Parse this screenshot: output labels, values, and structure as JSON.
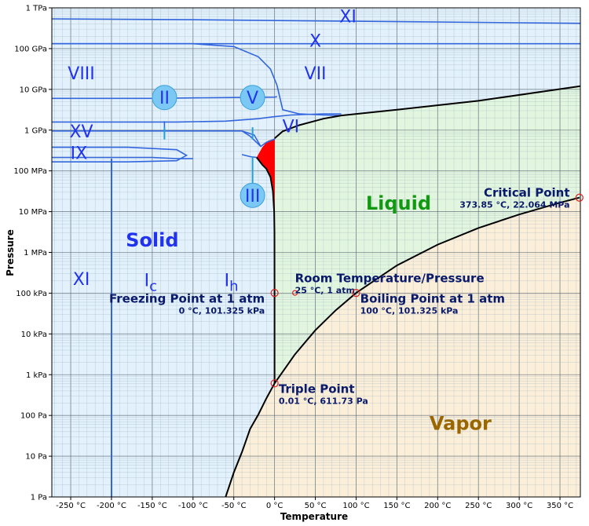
{
  "chart_data": {
    "type": "area",
    "xlabel": "Temperature",
    "ylabel": "Pressure",
    "xlim": [
      -273.15,
      375
    ],
    "ylim_log10_pa": [
      0,
      12
    ],
    "scale_y": "log",
    "x_tick_values": [
      -250,
      -200,
      -150,
      -100,
      -50,
      0,
      50,
      100,
      150,
      200,
      250,
      300,
      350
    ],
    "x_tick_labels": [
      "-250 °C",
      "-200 °C",
      "-150 °C",
      "-100 °C",
      "-50 °C",
      "0 °C",
      "50 °C",
      "100 °C",
      "150 °C",
      "200 °C",
      "250 °C",
      "300 °C",
      "350 °C"
    ],
    "y_tick_values_log10_pa": [
      0,
      1,
      2,
      3,
      4,
      5,
      6,
      7,
      8,
      9,
      10,
      11,
      12
    ],
    "y_tick_labels": [
      "1 Pa",
      "10 Pa",
      "100 Pa",
      "1 kPa",
      "10 kPa",
      "100 kPa",
      "1 MPa",
      "10 MPa",
      "100 MPa",
      "1 GPa",
      "10 GPa",
      "100 GPa",
      "1 TPa"
    ],
    "grid": true,
    "colors": {
      "solid": "#e2f1fb",
      "liquid": "#e2f6df",
      "vapor": "#fcefd9",
      "boundary": "#000000",
      "ice_boundary": "#3366dd",
      "ice_iii_region": "#ff0000",
      "marker": "#dd2222",
      "phase_label": "#2233ee",
      "liquid_label": "#119911",
      "vapor_label": "#996600",
      "point_label": "#0a1a6a"
    },
    "region_labels": [
      {
        "key": "solid",
        "text": "Solid",
        "color": "#2233ee",
        "x": -150,
        "y": 6.3
      },
      {
        "key": "liquid",
        "text": "Liquid",
        "color": "#119911",
        "x": 152,
        "y": 7.2
      },
      {
        "key": "vapor",
        "text": "Vapor",
        "color": "#996600",
        "x": 228,
        "y": 1.8
      }
    ],
    "phase_labels": [
      {
        "text": "XI",
        "x": 90,
        "y": 11.8
      },
      {
        "text": "X",
        "x": 50,
        "y": 11.2
      },
      {
        "text": "VIII",
        "x": -237,
        "y": 10.4
      },
      {
        "text": "VII",
        "x": 50,
        "y": 10.4
      },
      {
        "text": "VI",
        "x": 20,
        "y": 9.1
      },
      {
        "text": "XV",
        "x": -237,
        "y": 8.98
      },
      {
        "text": "IX",
        "x": -240,
        "y": 8.45
      },
      {
        "text": "XI",
        "x": -237,
        "y": 5.35
      },
      {
        "text": "I",
        "sub": "c",
        "x": -152,
        "y": 5.33
      },
      {
        "text": "I",
        "sub": "h",
        "x": -53,
        "y": 5.33
      }
    ],
    "ice_bubbles": [
      {
        "text": "II",
        "x": -135,
        "y": 9.8
      },
      {
        "text": "V",
        "x": -27,
        "y": 9.8
      },
      {
        "text": "III",
        "x": -27,
        "y": 7.4
      }
    ],
    "boundaries": {
      "sublimation": {
        "x": [
          -60,
          -50,
          -40,
          -30,
          -20,
          -10,
          0.01
        ],
        "y": [
          0,
          0.6,
          1.1,
          1.67,
          2.02,
          2.42,
          2.787
        ]
      },
      "vaporization": {
        "x": [
          0.01,
          25,
          50,
          75,
          100,
          150,
          200,
          250,
          300,
          350,
          373.85
        ],
        "y": [
          2.787,
          3.5,
          4.09,
          4.58,
          5.006,
          5.68,
          6.19,
          6.6,
          6.93,
          7.22,
          7.344
        ]
      },
      "melting": {
        "x": [
          0.01,
          0.0,
          -0.1,
          -0.5,
          -2,
          -5,
          -10,
          -15,
          -21.985
        ],
        "y": [
          2.787,
          5.0,
          6.5,
          7.0,
          7.5,
          7.85,
          8.05,
          8.15,
          8.33
        ]
      },
      "ice_vi_liquid": {
        "x": [
          0.16,
          10,
          30,
          60,
          81.85
        ],
        "y": [
          8.8,
          8.97,
          9.12,
          9.28,
          9.36
        ]
      },
      "ice_vii_liquid": {
        "x": [
          81.85,
          150,
          250,
          375
        ],
        "y": [
          9.36,
          9.5,
          9.72,
          10.08
        ]
      },
      "ice_iii_region": {
        "x": [
          -21.985,
          -15,
          -8,
          -2,
          0.16,
          0.16,
          -2,
          -5,
          -10,
          -17,
          -21.985
        ],
        "y": [
          8.33,
          8.58,
          8.74,
          8.78,
          8.8,
          7.0,
          7.6,
          7.85,
          8.05,
          8.2,
          8.33
        ]
      },
      "ice_x_xi": {
        "x": [
          -273.15,
          -100,
          100,
          375
        ],
        "y": [
          11.73,
          11.71,
          11.67,
          11.62
        ]
      },
      "ice_vii_x": {
        "x": [
          -273.15,
          375
        ],
        "y": [
          11.12,
          11.12
        ]
      },
      "ice_viii_vii": {
        "x": [
          -273.15,
          -100,
          -50,
          -20,
          -5,
          3
        ],
        "y": [
          11.12,
          11.12,
          11.05,
          10.8,
          10.5,
          10.1
        ]
      },
      "ice_vii_vi_lower": {
        "x": [
          3,
          10,
          30,
          60,
          81.85
        ],
        "y": [
          10.1,
          9.5,
          9.4,
          9.37,
          9.36
        ]
      },
      "ice_viii_vi": {
        "x": [
          -273.15,
          -150,
          -100,
          -50,
          0,
          3
        ],
        "y": [
          9.78,
          9.78,
          9.79,
          9.8,
          9.81,
          9.82
        ]
      },
      "ice_xv_top": {
        "x": [
          -273.15,
          -200,
          -120,
          -60,
          -20,
          0,
          20,
          60,
          81.85
        ],
        "y": [
          9.2,
          9.2,
          9.2,
          9.22,
          9.28,
          9.33,
          9.37,
          9.4,
          9.4
        ]
      },
      "ice_vi_bottom": {
        "x": [
          -273.15,
          -200,
          -100,
          -60,
          -40
        ],
        "y": [
          8.98,
          8.98,
          8.98,
          8.98,
          8.98
        ]
      },
      "ice_ii_vi": {
        "x": [
          -40,
          -30,
          -17,
          -10,
          0,
          0.16
        ],
        "y": [
          8.98,
          8.85,
          8.6,
          8.7,
          8.78,
          8.8
        ]
      },
      "ice_ii_iii": {
        "x": [
          -40,
          -30,
          -21.985
        ],
        "y": [
          8.4,
          8.35,
          8.33
        ]
      },
      "ice_ii_lower": {
        "x": [
          -273.15,
          -200,
          -150,
          -120,
          -100
        ],
        "y": [
          8.33,
          8.33,
          8.33,
          8.3,
          8.3
        ]
      },
      "ice_ix_loop": {
        "x": [
          -273.15,
          -180,
          -120,
          -108,
          -120,
          -180,
          -273.15
        ],
        "y": [
          8.58,
          8.58,
          8.52,
          8.38,
          8.25,
          8.22,
          8.22
        ]
      },
      "ice_ii_v_link": {
        "x": [
          -40,
          -25,
          -17
        ],
        "y": [
          8.98,
          8.88,
          8.6
        ]
      },
      "ice_ic_ih": {
        "x": [
          -200,
          -200
        ],
        "y": [
          0,
          8.3
        ]
      },
      "ice_ii_stem": {
        "x": [
          -135,
          -135
        ],
        "y": [
          9.07,
          8.77
        ]
      },
      "ice_v_stem": {
        "x": [
          -27,
          -27
        ],
        "y": [
          9.07,
          8.77
        ]
      },
      "ice_iii_stem": {
        "x": [
          -27,
          -27
        ],
        "y": [
          7.55,
          8.35
        ]
      },
      "ice_ii_short": {
        "x": [
          -135,
          -135
        ],
        "y": [
          8.98,
          9.22
        ]
      }
    },
    "points": [
      {
        "key": "triple",
        "title": "Triple Point",
        "subtitle": "0.01 °C, 611.73 Pa",
        "x": 0.01,
        "y": 2.787,
        "label_x": 5,
        "label_y": 2.55,
        "anchor": "start"
      },
      {
        "key": "freezing",
        "title": "Freezing Point at 1 atm",
        "subtitle": "0 °C, 101.325 kPa",
        "x": 0.0,
        "y": 5.006,
        "label_x": -12,
        "label_y": 4.77,
        "anchor": "end"
      },
      {
        "key": "room",
        "title": "Room Temperature/Pressure",
        "subtitle": "25 °C, 1 atm",
        "x": 25,
        "y": 5.006,
        "label_x": 25,
        "label_y": 5.27,
        "anchor": "start",
        "small": true
      },
      {
        "key": "boiling",
        "title": "Boiling Point at 1 atm",
        "subtitle": "100 °C, 101.325 kPa",
        "x": 100,
        "y": 5.006,
        "label_x": 105,
        "label_y": 4.77,
        "anchor": "start"
      },
      {
        "key": "critical",
        "title": "Critical Point",
        "subtitle": "373.85 °C, 22.064 MPa",
        "x": 373.85,
        "y": 7.344,
        "label_x": 362,
        "label_y": 7.37,
        "anchor": "end"
      }
    ]
  }
}
